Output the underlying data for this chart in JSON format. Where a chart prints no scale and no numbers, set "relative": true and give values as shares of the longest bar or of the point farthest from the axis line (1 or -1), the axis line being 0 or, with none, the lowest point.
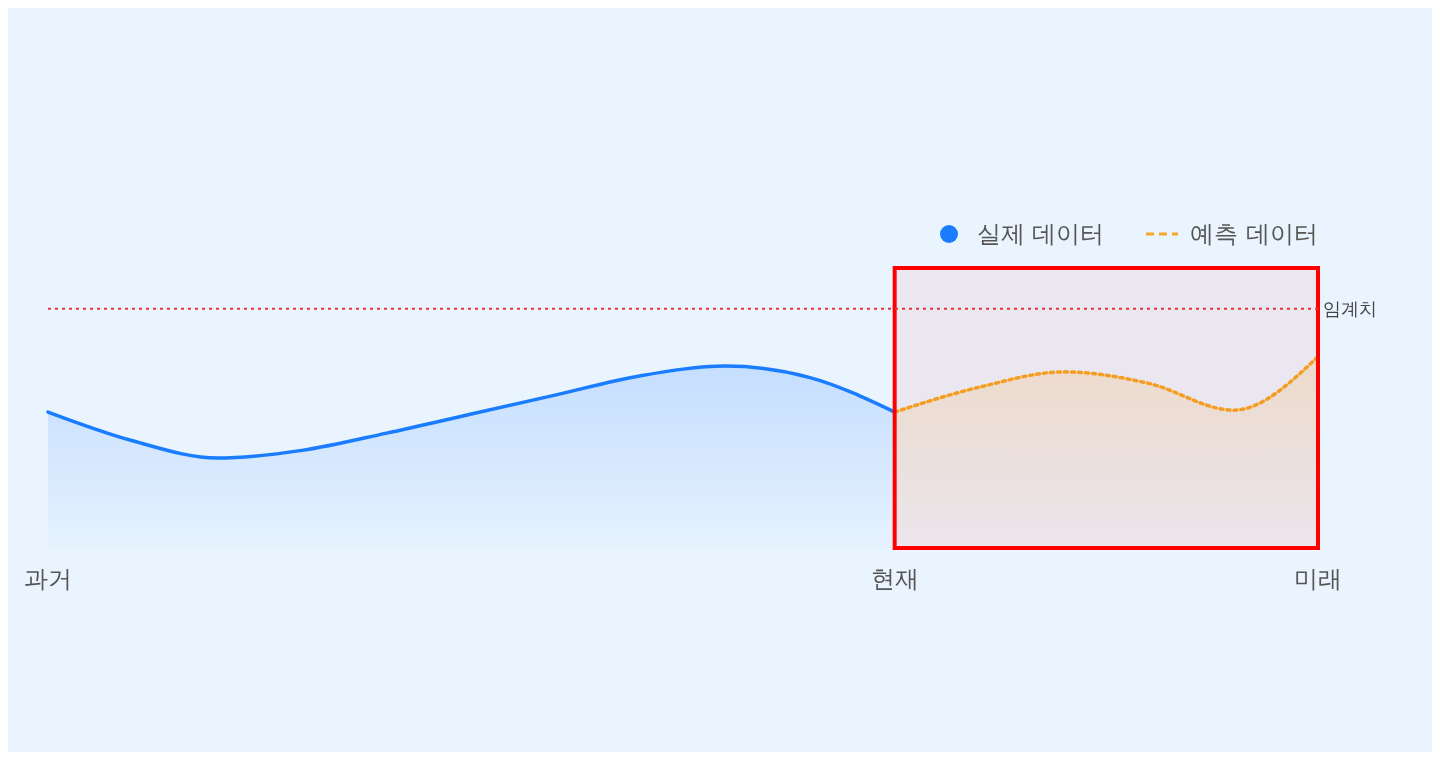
{
  "chart_data": {
    "type": "area",
    "relative": true,
    "legend": "top right",
    "categories": [
      "과거",
      null,
      null,
      null,
      null,
      null,
      null,
      null,
      null,
      null,
      "현재",
      null,
      null,
      null,
      null,
      "미래"
    ],
    "series": [
      {
        "name": "실제 데이터",
        "color": "#1a7cff",
        "values": [
          0.71,
          0.56,
          0.47,
          0.51,
          0.6,
          0.7,
          0.8,
          0.9,
          0.95,
          0.89,
          0.71,
          null,
          null,
          null,
          null,
          null
        ]
      },
      {
        "name": "예측 데이터",
        "color": "#f5a623",
        "line_style": "dotted",
        "values": [
          null,
          null,
          null,
          null,
          null,
          null,
          null,
          null,
          null,
          null,
          0.71,
          0.84,
          0.92,
          0.86,
          0.72,
          1.0
        ]
      }
    ],
    "ref_lines": [
      {
        "axis": "y",
        "value": 1.25,
        "label": "임계치",
        "color": "#e8333a",
        "line_style": "dotted"
      }
    ],
    "bands": [
      {
        "axis": "x",
        "from": "현재",
        "to": "미래",
        "color": "#ff0000"
      }
    ]
  }
}
